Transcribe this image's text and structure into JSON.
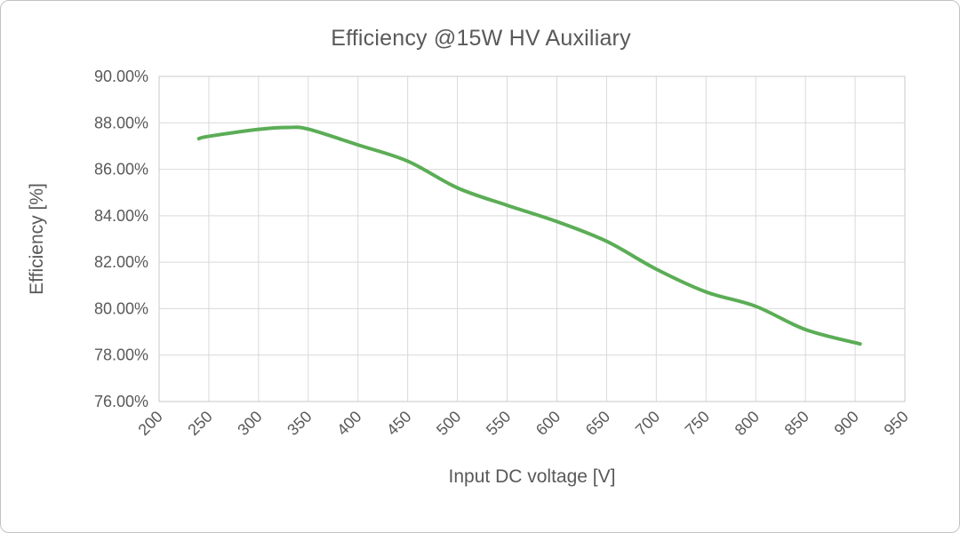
{
  "chart": {
    "title": "Efficiency @15W HV Auxiliary",
    "x_axis_title": "Input DC voltage [V]",
    "y_axis_title": "Efficiency [%]"
  },
  "chart_data": {
    "type": "line",
    "title": "Efficiency @15W HV Auxiliary",
    "xlabel": "Input DC voltage [V]",
    "ylabel": "Efficiency [%]",
    "xlim": [
      200,
      950
    ],
    "ylim": [
      76,
      90
    ],
    "grid": true,
    "legend": "none",
    "x_ticks": [
      200,
      250,
      300,
      350,
      400,
      450,
      500,
      550,
      600,
      650,
      700,
      750,
      800,
      850,
      900,
      950
    ],
    "y_ticks": [
      90,
      88,
      86,
      84,
      82,
      80,
      78,
      76
    ],
    "y_tick_labels": [
      "90.00%",
      "88.00%",
      "86.00%",
      "84.00%",
      "82.00%",
      "80.00%",
      "78.00%",
      "76.00%"
    ],
    "series": [
      {
        "name": "Efficiency",
        "color": "#5bad56",
        "x": [
          240,
          250,
          300,
          330,
          350,
          400,
          450,
          500,
          550,
          600,
          650,
          700,
          750,
          800,
          850,
          905
        ],
        "y": [
          87.32,
          87.42,
          87.72,
          87.8,
          87.73,
          87.05,
          86.35,
          85.2,
          84.45,
          83.75,
          82.9,
          81.7,
          80.72,
          80.1,
          79.1,
          78.48
        ]
      }
    ]
  },
  "style": {
    "line_color": "#5bad56",
    "grid_color": "#d9d9d9",
    "axis_line_color": "#c9c9c9",
    "text_color": "#595959",
    "background": "#ffffff"
  }
}
